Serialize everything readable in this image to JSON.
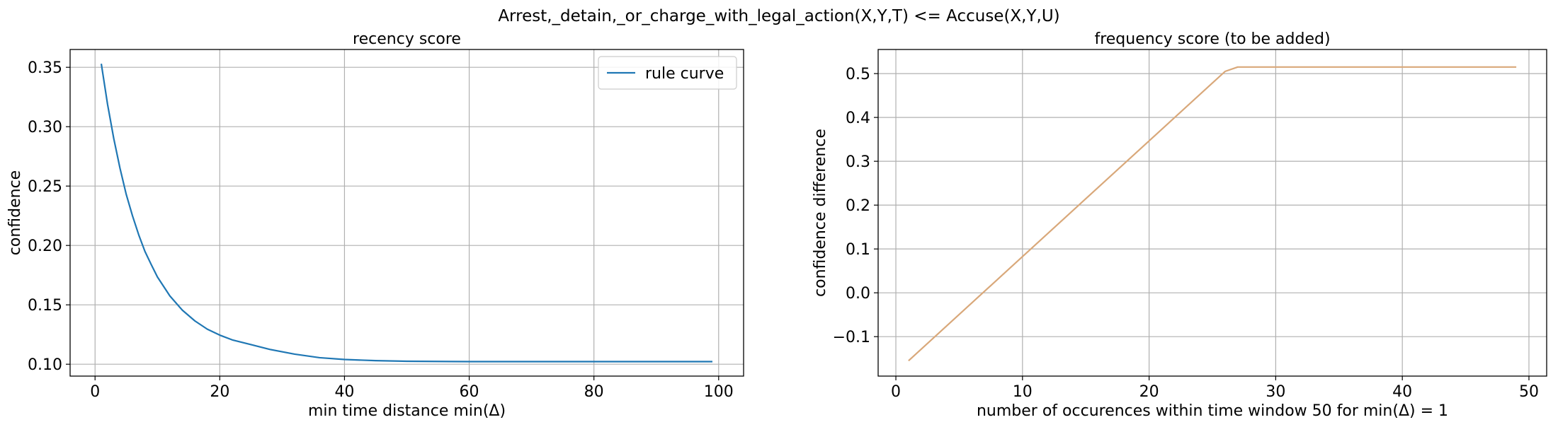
{
  "figure": {
    "suptitle": "Arrest,_detain,_or_charge_with_legal_action(X,Y,T) <= Accuse(X,Y,U)"
  },
  "chart_data": [
    {
      "type": "line",
      "title": "recency score",
      "xlabel": "min time distance min(Δ)",
      "ylabel": "confidence",
      "xlim": [
        -4,
        104
      ],
      "ylim": [
        0.09,
        0.365
      ],
      "xticks": [
        0,
        20,
        40,
        60,
        80,
        100
      ],
      "yticks": [
        0.1,
        0.15,
        0.2,
        0.25,
        0.3,
        0.35
      ],
      "ytick_labels": [
        "0.10",
        "0.15",
        "0.20",
        "0.25",
        "0.30",
        "0.35"
      ],
      "grid": true,
      "legend": {
        "position": "upper right",
        "entries": [
          "rule curve"
        ]
      },
      "series": [
        {
          "name": "rule curve",
          "color": "#1f77b4",
          "x": [
            1,
            2,
            3,
            4,
            5,
            6,
            7,
            8,
            9,
            10,
            12,
            14,
            16,
            18,
            20,
            22,
            25,
            28,
            32,
            36,
            40,
            45,
            50,
            60,
            70,
            80,
            90,
            99
          ],
          "y": [
            0.353,
            0.319,
            0.29,
            0.265,
            0.243,
            0.225,
            0.209,
            0.195,
            0.184,
            0.1735,
            0.1575,
            0.1455,
            0.1365,
            0.1295,
            0.1245,
            0.1205,
            0.1165,
            0.1125,
            0.1085,
            0.1055,
            0.104,
            0.103,
            0.1025,
            0.1022,
            0.1022,
            0.1022,
            0.1022,
            0.1022
          ]
        }
      ]
    },
    {
      "type": "line",
      "title": "frequency score (to be added)",
      "xlabel": "number of occurences within time window 50 for min(Δ) = 1",
      "ylabel": "confidence difference",
      "xlim": [
        -1.4,
        51.4
      ],
      "ylim": [
        -0.19,
        0.555
      ],
      "xticks": [
        0,
        10,
        20,
        30,
        40,
        50
      ],
      "yticks": [
        -0.1,
        0.0,
        0.1,
        0.2,
        0.3,
        0.4,
        0.5
      ],
      "ytick_labels": [
        "−0.1",
        "0.0",
        "0.1",
        "0.2",
        "0.3",
        "0.4",
        "0.5"
      ],
      "grid": true,
      "series": [
        {
          "color": "#d9a87a",
          "x": [
            1,
            26,
            27,
            49
          ],
          "y": [
            -0.155,
            0.505,
            0.515,
            0.515
          ]
        }
      ]
    }
  ]
}
